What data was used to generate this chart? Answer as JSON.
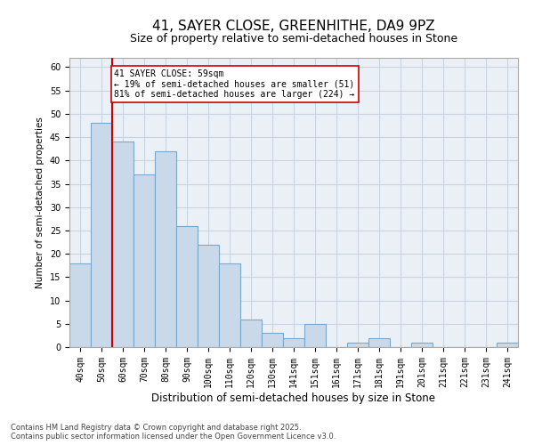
{
  "title1": "41, SAYER CLOSE, GREENHITHE, DA9 9PZ",
  "title2": "Size of property relative to semi-detached houses in Stone",
  "xlabel": "Distribution of semi-detached houses by size in Stone",
  "ylabel": "Number of semi-detached properties",
  "categories": [
    "40sqm",
    "50sqm",
    "60sqm",
    "70sqm",
    "80sqm",
    "90sqm",
    "100sqm",
    "110sqm",
    "120sqm",
    "130sqm",
    "141sqm",
    "151sqm",
    "161sqm",
    "171sqm",
    "181sqm",
    "191sqm",
    "201sqm",
    "211sqm",
    "221sqm",
    "231sqm",
    "241sqm"
  ],
  "values": [
    18,
    48,
    44,
    37,
    42,
    26,
    22,
    18,
    6,
    3,
    2,
    5,
    0,
    1,
    2,
    0,
    1,
    0,
    0,
    0,
    1
  ],
  "bar_color": "#c9d9ea",
  "bar_edge_color": "#7aa8cc",
  "subject_line_label": "41 SAYER CLOSE: 59sqm",
  "annotation_line1": "← 19% of semi-detached houses are smaller (51)",
  "annotation_line2": "81% of semi-detached houses are larger (224) →",
  "annotation_box_color": "#ffffff",
  "annotation_box_edge": "#cc0000",
  "vline_color": "#cc0000",
  "ylim": [
    0,
    62
  ],
  "yticks": [
    0,
    5,
    10,
    15,
    20,
    25,
    30,
    35,
    40,
    45,
    50,
    55,
    60
  ],
  "grid_color": "#c8d4e0",
  "bg_color": "#eaf0f6",
  "footer1": "Contains HM Land Registry data © Crown copyright and database right 2025.",
  "footer2": "Contains public sector information licensed under the Open Government Licence v3.0.",
  "title1_fontsize": 11,
  "title2_fontsize": 9,
  "xlabel_fontsize": 8.5,
  "ylabel_fontsize": 7.5,
  "tick_fontsize": 7,
  "annotation_fontsize": 7,
  "footer_fontsize": 6
}
